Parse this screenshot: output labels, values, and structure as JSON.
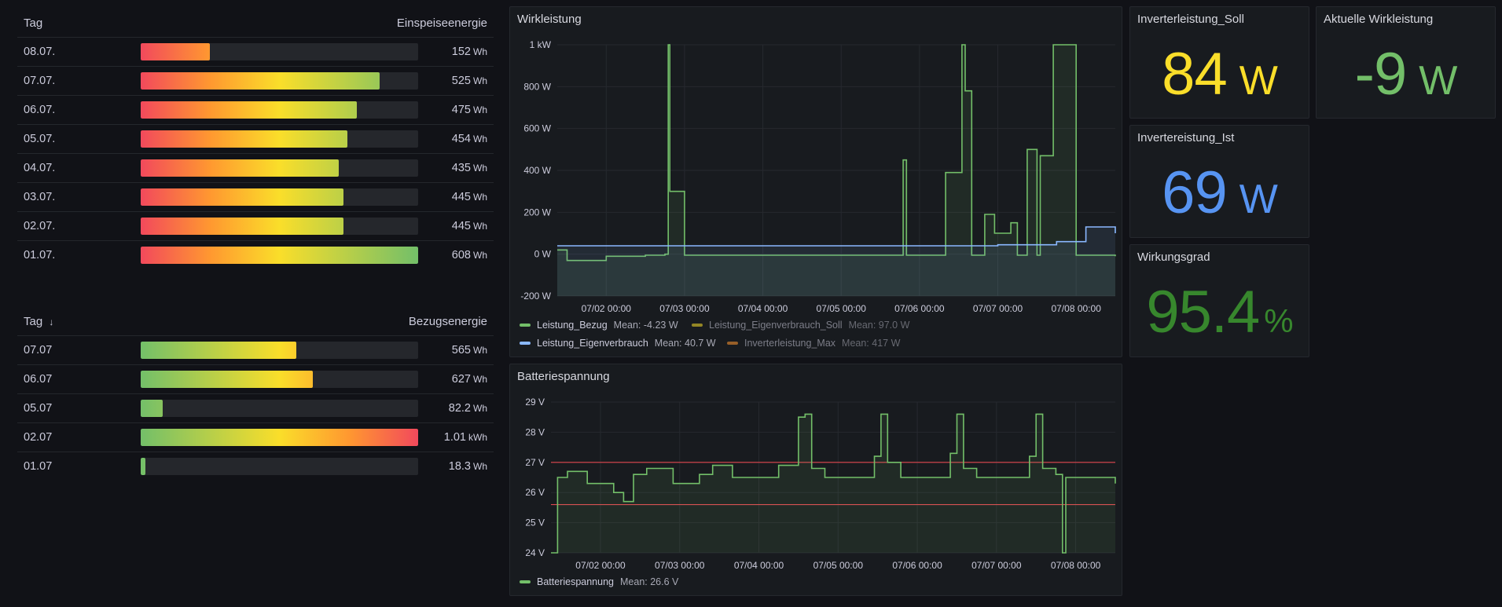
{
  "einspeise_table": {
    "col_day": "Tag",
    "col_value": "Einspeiseenergie",
    "rows": [
      {
        "day": "08.07.",
        "value": "152",
        "unit": "Wh",
        "fraction": 0.25
      },
      {
        "day": "07.07.",
        "value": "525",
        "unit": "Wh",
        "fraction": 0.86
      },
      {
        "day": "06.07.",
        "value": "475",
        "unit": "Wh",
        "fraction": 0.78
      },
      {
        "day": "05.07.",
        "value": "454",
        "unit": "Wh",
        "fraction": 0.745
      },
      {
        "day": "04.07.",
        "value": "435",
        "unit": "Wh",
        "fraction": 0.715
      },
      {
        "day": "03.07.",
        "value": "445",
        "unit": "Wh",
        "fraction": 0.73
      },
      {
        "day": "02.07.",
        "value": "445",
        "unit": "Wh",
        "fraction": 0.73
      },
      {
        "day": "01.07.",
        "value": "608",
        "unit": "Wh",
        "fraction": 1.0
      }
    ]
  },
  "bezug_table": {
    "col_day": "Tag",
    "sort_indicator": "↓",
    "col_value": "Bezugsenergie",
    "rows": [
      {
        "day": "07.07",
        "value": "565",
        "unit": "Wh",
        "fraction": 0.56
      },
      {
        "day": "06.07",
        "value": "627",
        "unit": "Wh",
        "fraction": 0.62
      },
      {
        "day": "05.07",
        "value": "82.2",
        "unit": "Wh",
        "fraction": 0.08
      },
      {
        "day": "02.07",
        "value": "1.01",
        "unit": "kWh",
        "fraction": 1.0
      },
      {
        "day": "01.07",
        "value": "18.3",
        "unit": "Wh",
        "fraction": 0.018
      }
    ]
  },
  "wirkleistung_panel": {
    "title": "Wirkleistung",
    "legend": [
      {
        "name": "Leistung_Bezug",
        "mean": "Mean: -4.23 W",
        "color": "#73bf69",
        "dim": false
      },
      {
        "name": "Leistung_Eigenverbrauch_Soll",
        "mean": "Mean: 97.0 W",
        "color": "#fade2a",
        "dim": true
      },
      {
        "name": "Leistung_Eigenverbrauch",
        "mean": "Mean: 40.7 W",
        "color": "#8ab8ff",
        "dim": false
      },
      {
        "name": "Inverterleistung_Max",
        "mean": "Mean: 417 W",
        "color": "#ff9830",
        "dim": true
      }
    ]
  },
  "batterie_panel": {
    "title": "Batteriespannung",
    "legend": [
      {
        "name": "Batteriespannung",
        "mean": "Mean: 26.6 V",
        "color": "#73bf69"
      }
    ]
  },
  "stats": {
    "soll": {
      "title": "Inverterleistung_Soll",
      "value": "84",
      "unit": "W",
      "color": "#fade2a"
    },
    "aktuelle": {
      "title": "Aktuelle Wirkleistung",
      "value": "-9",
      "unit": "W",
      "color": "#73bf69"
    },
    "ist": {
      "title": "Invertereistung_Ist",
      "value": "69",
      "unit": "W",
      "color": "#5794f2"
    },
    "wirkungsgrad": {
      "title": "Wirkungsgrad",
      "value": "95.4",
      "unit": "%",
      "color": "#37872d"
    }
  },
  "chart_data": [
    {
      "type": "line",
      "title": "Wirkleistung",
      "x_ticks": [
        "07/02 00:00",
        "07/03 00:00",
        "07/04 00:00",
        "07/05 00:00",
        "07/06 00:00",
        "07/07 00:00",
        "07/08 00:00"
      ],
      "y_ticks": [
        "1 kW",
        "800 W",
        "600 W",
        "400 W",
        "200 W",
        "0 W",
        "-200 W"
      ],
      "ylim": [
        -200,
        1000
      ],
      "x_range_days": [
        "07/01 09:00",
        "07/08 12:00"
      ],
      "series": [
        {
          "name": "Leistung_Bezug",
          "color": "#73bf69",
          "x": [
            "07/01 09:00",
            "07/01 12:00",
            "07/02 00:00",
            "07/02 12:00",
            "07/02 18:00",
            "07/02 19:00",
            "07/02 19:30",
            "07/03 00:00",
            "07/04 00:00",
            "07/05 00:00",
            "07/05 18:00",
            "07/05 19:00",
            "07/05 20:00",
            "07/06 00:00",
            "07/06 08:00",
            "07/06 13:00",
            "07/06 14:00",
            "07/06 16:00",
            "07/06 20:00",
            "07/06 23:00",
            "07/07 04:00",
            "07/07 06:00",
            "07/07 09:00",
            "07/07 12:00",
            "07/07 13:00",
            "07/07 17:00",
            "07/08 00:00",
            "07/08 12:00"
          ],
          "y": [
            20,
            -30,
            -10,
            -5,
            0,
            1000,
            300,
            -5,
            -5,
            -5,
            -5,
            450,
            -5,
            -5,
            390,
            1000,
            780,
            -5,
            190,
            100,
            150,
            -5,
            500,
            -5,
            470,
            1000,
            -5,
            -10
          ]
        },
        {
          "name": "Leistung_Eigenverbrauch",
          "color": "#8ab8ff",
          "x": [
            "07/01 09:00",
            "07/02 00:00",
            "07/03 00:00",
            "07/04 00:00",
            "07/05 00:00",
            "07/06 00:00",
            "07/07 00:00",
            "07/07 18:00",
            "07/08 00:00",
            "07/08 03:00",
            "07/08 12:00"
          ],
          "y": [
            40,
            40,
            40,
            40,
            40,
            40,
            45,
            60,
            60,
            130,
            100
          ]
        }
      ]
    },
    {
      "type": "line",
      "title": "Batteriespannung",
      "x_ticks": [
        "07/02 00:00",
        "07/03 00:00",
        "07/04 00:00",
        "07/05 00:00",
        "07/06 00:00",
        "07/07 00:00",
        "07/08 00:00"
      ],
      "y_ticks": [
        "29 V",
        "28 V",
        "27 V",
        "26 V",
        "25 V",
        "24 V"
      ],
      "ylim": [
        24,
        29
      ],
      "thresholds": [
        27.0,
        25.6
      ],
      "series": [
        {
          "name": "Batteriespannung",
          "color": "#73bf69",
          "x": [
            "07/01 09:00",
            "07/01 11:00",
            "07/01 14:00",
            "07/01 20:00",
            "07/02 04:00",
            "07/02 07:00",
            "07/02 10:00",
            "07/02 14:00",
            "07/02 22:00",
            "07/03 06:00",
            "07/03 10:00",
            "07/03 16:00",
            "07/03 22:00",
            "07/04 06:00",
            "07/04 12:00",
            "07/04 14:00",
            "07/04 16:00",
            "07/04 20:00",
            "07/05 06:00",
            "07/05 11:00",
            "07/05 13:00",
            "07/05 15:00",
            "07/05 19:00",
            "07/06 06:00",
            "07/06 10:00",
            "07/06 12:00",
            "07/06 14:00",
            "07/06 18:00",
            "07/07 06:00",
            "07/07 10:00",
            "07/07 12:00",
            "07/07 14:00",
            "07/07 18:00",
            "07/07 20:00",
            "07/07 21:00",
            "07/08 06:00",
            "07/08 12:00"
          ],
          "y": [
            24.0,
            26.5,
            26.7,
            26.3,
            26.0,
            25.7,
            26.6,
            26.8,
            26.3,
            26.6,
            26.9,
            26.5,
            26.5,
            26.9,
            28.5,
            28.6,
            26.8,
            26.5,
            26.5,
            27.2,
            28.6,
            27.0,
            26.5,
            26.5,
            27.3,
            28.6,
            26.8,
            26.5,
            26.5,
            27.2,
            28.6,
            26.8,
            26.6,
            24.0,
            26.5,
            26.5,
            26.3
          ]
        }
      ]
    }
  ]
}
